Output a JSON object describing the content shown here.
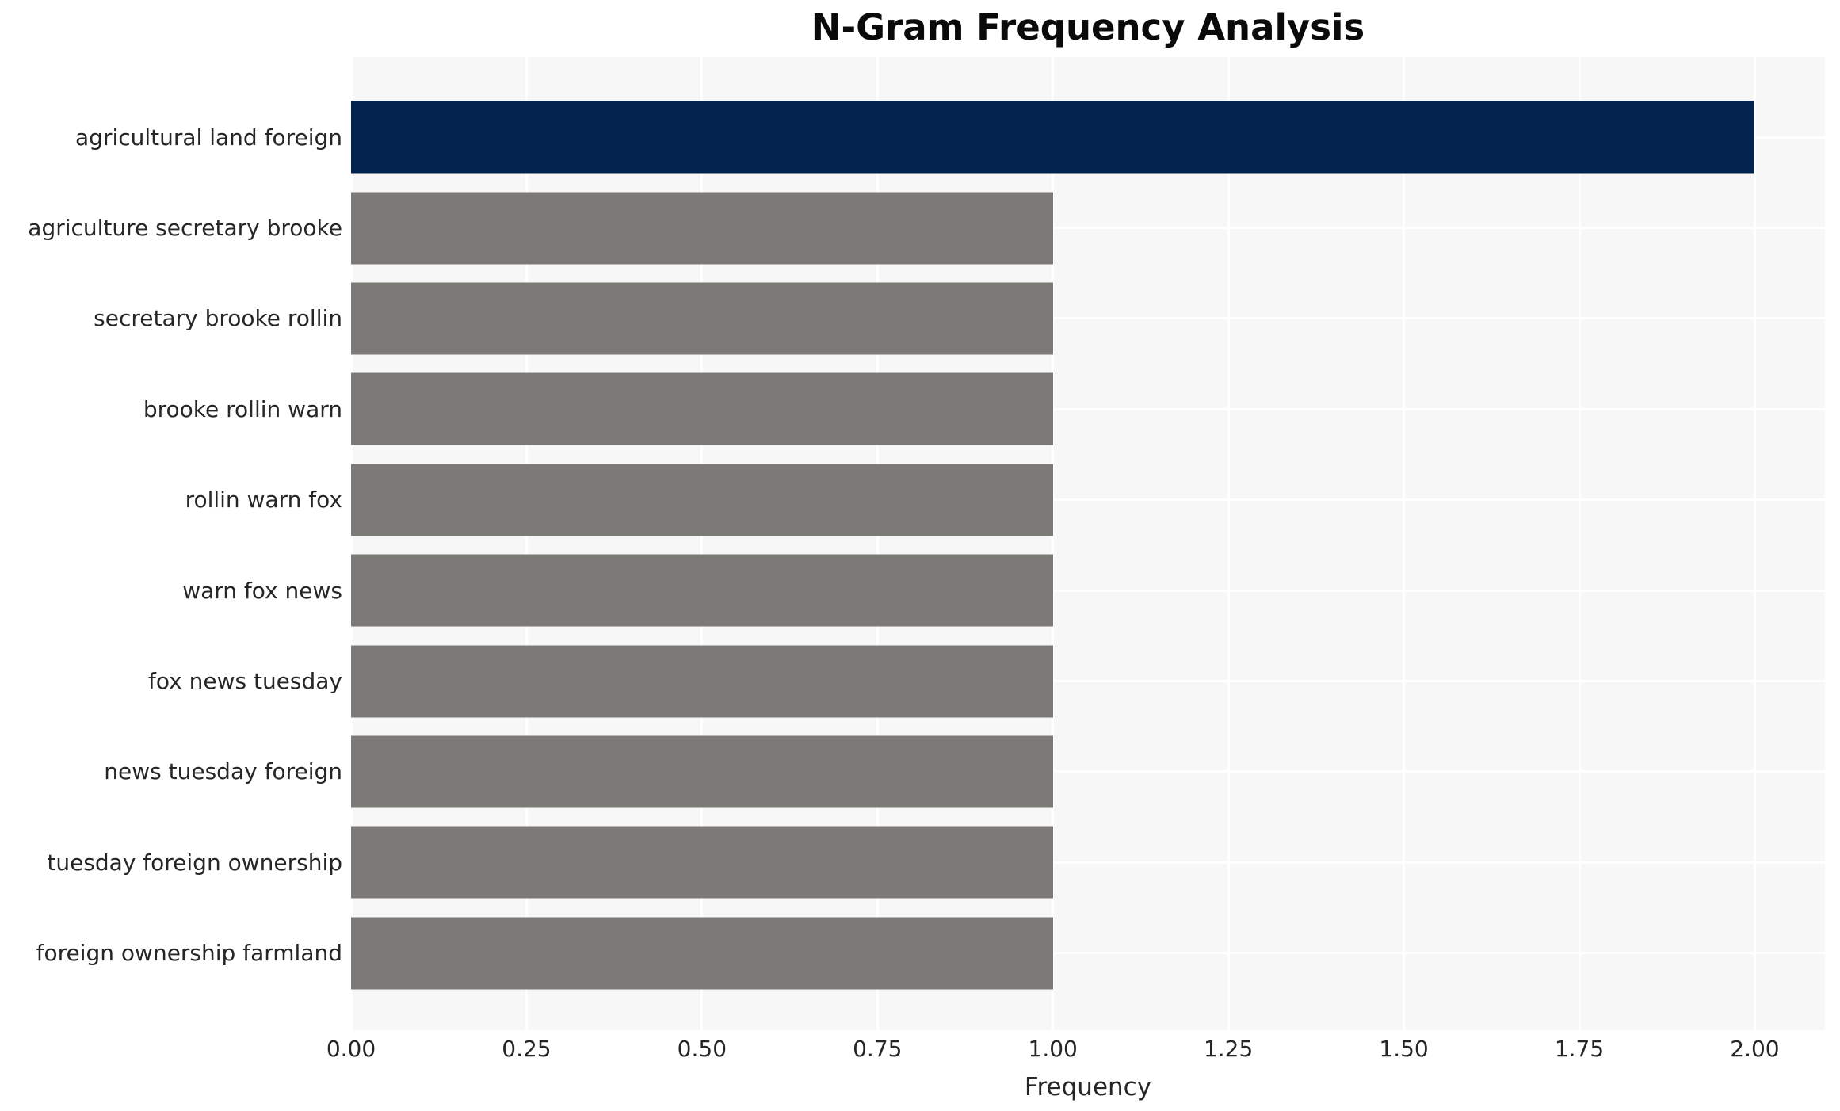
{
  "chart_data": {
    "type": "bar",
    "orientation": "horizontal",
    "title": "N-Gram Frequency Analysis",
    "xlabel": "Frequency",
    "ylabel": "",
    "categories": [
      "agricultural land foreign",
      "agriculture secretary brooke",
      "secretary brooke rollin",
      "brooke rollin warn",
      "rollin warn fox",
      "warn fox news",
      "fox news tuesday",
      "news tuesday foreign",
      "tuesday foreign ownership",
      "foreign ownership farmland"
    ],
    "values": [
      2.0,
      1.0,
      1.0,
      1.0,
      1.0,
      1.0,
      1.0,
      1.0,
      1.0,
      1.0
    ],
    "bar_colors": [
      "#02234e",
      "#7b7a76",
      "#7b7a76",
      "#7b7a76",
      "#7b7a76",
      "#7b7a76",
      "#7b7a76",
      "#7b7a76",
      "#7b7a76",
      "#7b7a76"
    ],
    "xlim": [
      0,
      2.1
    ],
    "xticks": [
      0.0,
      0.25,
      0.5,
      0.75,
      1.0,
      1.25,
      1.5,
      1.75,
      2.0
    ],
    "xtick_labels": [
      "0.00",
      "0.25",
      "0.50",
      "0.75",
      "1.00",
      "1.25",
      "1.50",
      "1.75",
      "2.00"
    ],
    "grid": "on",
    "legend": "none",
    "colors": {
      "highlight_bar": "#02234e",
      "default_bar": "#7b7a76",
      "plot_background": "#f7f7f7",
      "gridline": "#ffffff",
      "text": "#262626",
      "title_text": "#0a0a0a",
      "figure_background": "#ffffff"
    }
  }
}
